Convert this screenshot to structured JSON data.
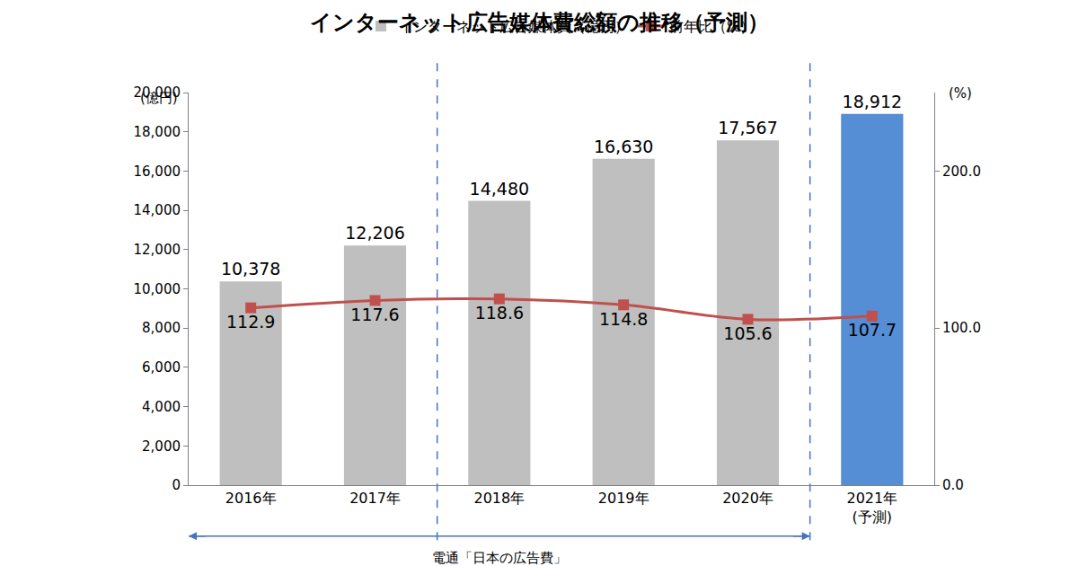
{
  "chart_data": {
    "type": "bar",
    "title": "インターネット広告媒体費総額の推移（予測）",
    "categories": [
      "2016年",
      "2017年",
      "2018年",
      "2019年",
      "2020年",
      "2021年\n(予測)"
    ],
    "series": [
      {
        "name": "インターネット広告媒体費（億円）",
        "type": "bar",
        "colors": [
          "#bfbfbf",
          "#bfbfbf",
          "#bfbfbf",
          "#bfbfbf",
          "#bfbfbf",
          "#558ed5"
        ],
        "values": [
          10378,
          12206,
          14480,
          16630,
          17567,
          18912
        ],
        "value_labels": [
          "10,378",
          "12,206",
          "14,480",
          "16,630",
          "17,567",
          "18,912"
        ]
      },
      {
        "name": "前年比（%）",
        "type": "line",
        "axis": "y2",
        "color": "#c0504d",
        "marker": "square",
        "values": [
          112.9,
          117.6,
          118.6,
          114.8,
          105.6,
          107.7
        ]
      }
    ],
    "ylim": [
      0,
      20000
    ],
    "yticks": [
      0,
      {
        "value": 2000,
        "label": "2,000"
      },
      {
        "value": 4000,
        "label": "4,000"
      },
      {
        "value": 6000,
        "label": "6,000"
      },
      {
        "value": 8000,
        "label": "8,000"
      },
      {
        "value": 10000,
        "label": "10,000"
      },
      {
        "value": 12000,
        "label": "12,000"
      },
      {
        "value": 14000,
        "label": "14,000"
      },
      {
        "value": 16000,
        "label": "16,000"
      },
      {
        "value": 18000,
        "label": "18,000"
      },
      {
        "value": 20000,
        "label": "20,000"
      }
    ],
    "y2lim": [
      0,
      250
    ],
    "y2ticks": [
      {
        "value": 0,
        "label": "0.0"
      },
      {
        "value": 100,
        "label": "100.0"
      },
      {
        "value": 200,
        "label": "200.0"
      }
    ],
    "ylabel": "(億円)",
    "y2label": "(%)",
    "annotations": [
      "電通「日本の広告費」"
    ],
    "data_labels": true,
    "grid": false,
    "legend": "top"
  }
}
